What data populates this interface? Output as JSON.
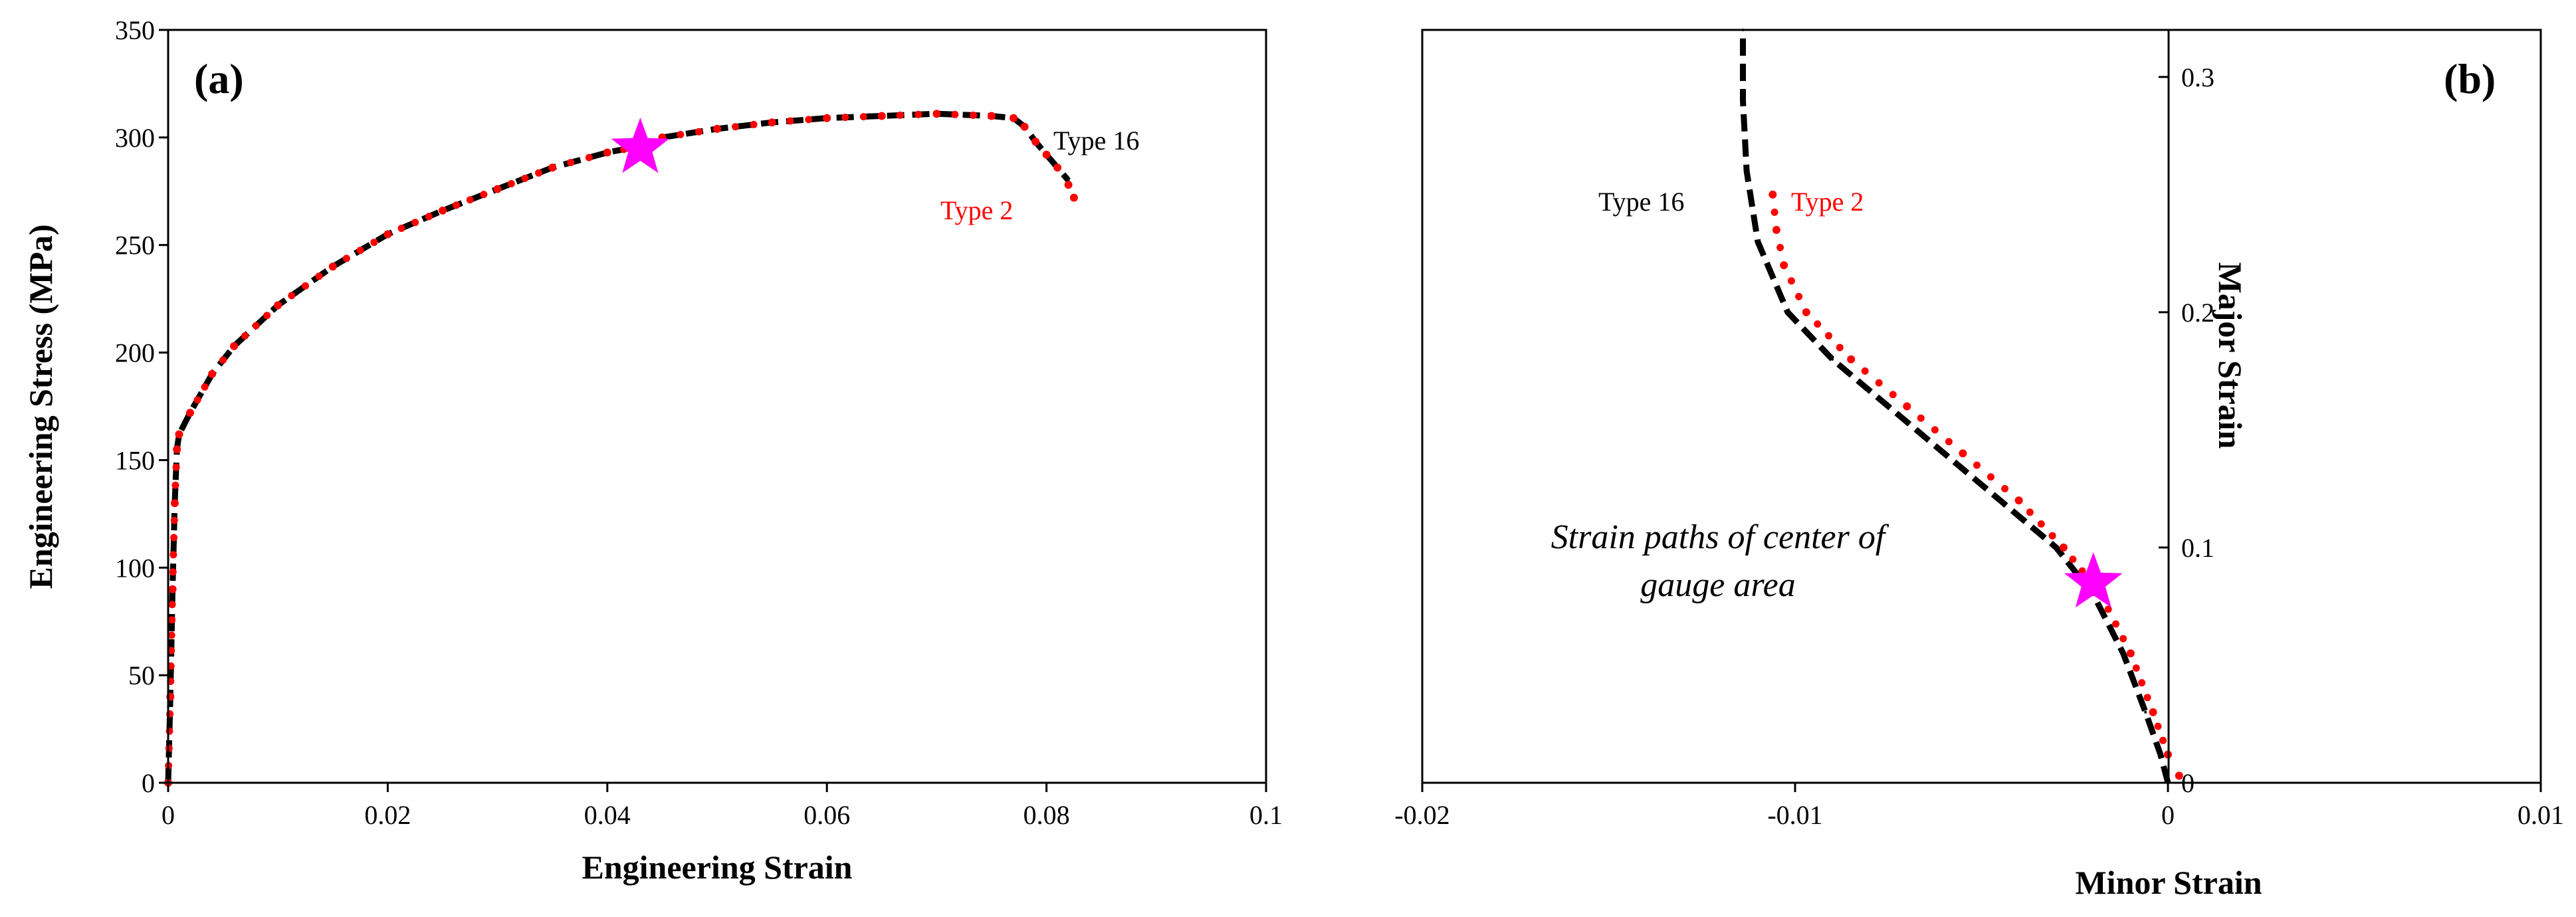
{
  "chart_data": [
    {
      "type": "line",
      "panel_label": "(a)",
      "xlabel": "Engineering Strain",
      "ylabel": "Engineering Stress (MPa)",
      "xlim": [
        0,
        0.1
      ],
      "ylim": [
        0,
        350
      ],
      "x_ticks": [
        0,
        0.02,
        0.04,
        0.06,
        0.08,
        0.1
      ],
      "x_tick_labels": [
        "0",
        "0.02",
        "0.04",
        "0.06",
        "0.08",
        "0.1"
      ],
      "y_ticks": [
        0,
        50,
        100,
        150,
        200,
        250,
        300,
        350
      ],
      "y_tick_labels": [
        "0",
        "50",
        "100",
        "150",
        "200",
        "250",
        "300",
        "350"
      ],
      "grid": false,
      "series": [
        {
          "name": "Type 16",
          "style": "dashed",
          "color": "#000000",
          "x": [
            0,
            0.0002,
            0.0004,
            0.0006,
            0.0008,
            0.001,
            0.002,
            0.004,
            0.006,
            0.01,
            0.015,
            0.02,
            0.025,
            0.03,
            0.035,
            0.04,
            0.043,
            0.045,
            0.05,
            0.055,
            0.06,
            0.065,
            0.07,
            0.075,
            0.077,
            0.078,
            0.079,
            0.08,
            0.081,
            0.082
          ],
          "y": [
            0,
            40,
            90,
            130,
            155,
            162,
            172,
            190,
            203,
            222,
            240,
            255,
            266,
            276,
            286,
            293,
            296,
            300,
            304,
            307,
            309,
            310,
            311,
            310,
            309,
            305,
            298,
            292,
            286,
            280
          ]
        },
        {
          "name": "Type 2",
          "style": "dotted",
          "color": "#ff0000",
          "x": [
            0,
            0.0002,
            0.0004,
            0.0006,
            0.0008,
            0.001,
            0.002,
            0.004,
            0.006,
            0.01,
            0.015,
            0.02,
            0.025,
            0.03,
            0.035,
            0.04,
            0.043,
            0.045,
            0.05,
            0.055,
            0.06,
            0.065,
            0.07,
            0.075,
            0.077,
            0.078,
            0.079,
            0.08,
            0.081,
            0.082,
            0.0825
          ],
          "y": [
            0,
            40,
            90,
            130,
            155,
            162,
            172,
            190,
            203,
            222,
            240,
            255,
            266,
            276,
            286,
            293,
            296,
            300,
            304,
            307,
            309,
            310,
            311,
            310,
            309,
            305,
            298,
            292,
            286,
            278,
            272
          ]
        }
      ],
      "marker": {
        "shape": "star",
        "color": "#ff00ff",
        "x": 0.043,
        "y": 295
      },
      "annotations": [
        {
          "text": "Type 16",
          "x": 0.0815,
          "y": 297,
          "color": "#000000"
        },
        {
          "text": "Type 2",
          "x": 0.0705,
          "y": 265,
          "color": "#ff0000"
        }
      ]
    },
    {
      "type": "line",
      "panel_label": "(b)",
      "xlabel": "Minor Strain",
      "ylabel": "Major Strain",
      "xlim": [
        -0.02,
        0.01
      ],
      "ylim": [
        0,
        0.32
      ],
      "x_ticks": [
        -0.02,
        -0.01,
        0,
        0.01
      ],
      "x_tick_labels": [
        "-0.02",
        "-0.01",
        "0",
        "0.01"
      ],
      "y_ticks": [
        0,
        0.1,
        0.2,
        0.3
      ],
      "y_tick_labels": [
        "0",
        "0.1",
        "0.2",
        "0.3"
      ],
      "grid": false,
      "series": [
        {
          "name": "Type 16",
          "style": "dashed",
          "color": "#000000",
          "x": [
            0,
            -0.0002,
            -0.0006,
            -0.0012,
            -0.002,
            -0.003,
            -0.0045,
            -0.006,
            -0.0075,
            -0.009,
            -0.0102,
            -0.011,
            -0.0113,
            -0.0114,
            -0.0114
          ],
          "y": [
            0,
            0.012,
            0.03,
            0.055,
            0.08,
            0.1,
            0.12,
            0.14,
            0.16,
            0.18,
            0.2,
            0.23,
            0.26,
            0.29,
            0.32
          ]
        },
        {
          "name": "Type 2",
          "style": "dotted",
          "color": "#ff0000",
          "x": [
            0.0003,
            0,
            -0.0004,
            -0.001,
            -0.0018,
            -0.0028,
            -0.004,
            -0.0055,
            -0.007,
            -0.0085,
            -0.0097,
            -0.0103,
            -0.0105,
            -0.0106
          ],
          "y": [
            0.003,
            0.012,
            0.03,
            0.055,
            0.08,
            0.1,
            0.12,
            0.14,
            0.16,
            0.18,
            0.2,
            0.22,
            0.235,
            0.25
          ]
        }
      ],
      "marker": {
        "shape": "star",
        "color": "#ff00ff",
        "x": -0.002,
        "y": 0.085
      },
      "annotations": [
        {
          "text": "Type 16",
          "x": -0.0145,
          "y": 0.247,
          "color": "#000000"
        },
        {
          "text": "Type 2",
          "x": -0.0099,
          "y": 0.247,
          "color": "#ff0000"
        },
        {
          "text": "Strain paths of center of",
          "x": -0.0103,
          "y": 0.102,
          "color": "#000000",
          "italic": true
        },
        {
          "text": "gauge area",
          "x": -0.0103,
          "y": 0.083,
          "color": "#000000",
          "italic": true
        }
      ]
    }
  ]
}
